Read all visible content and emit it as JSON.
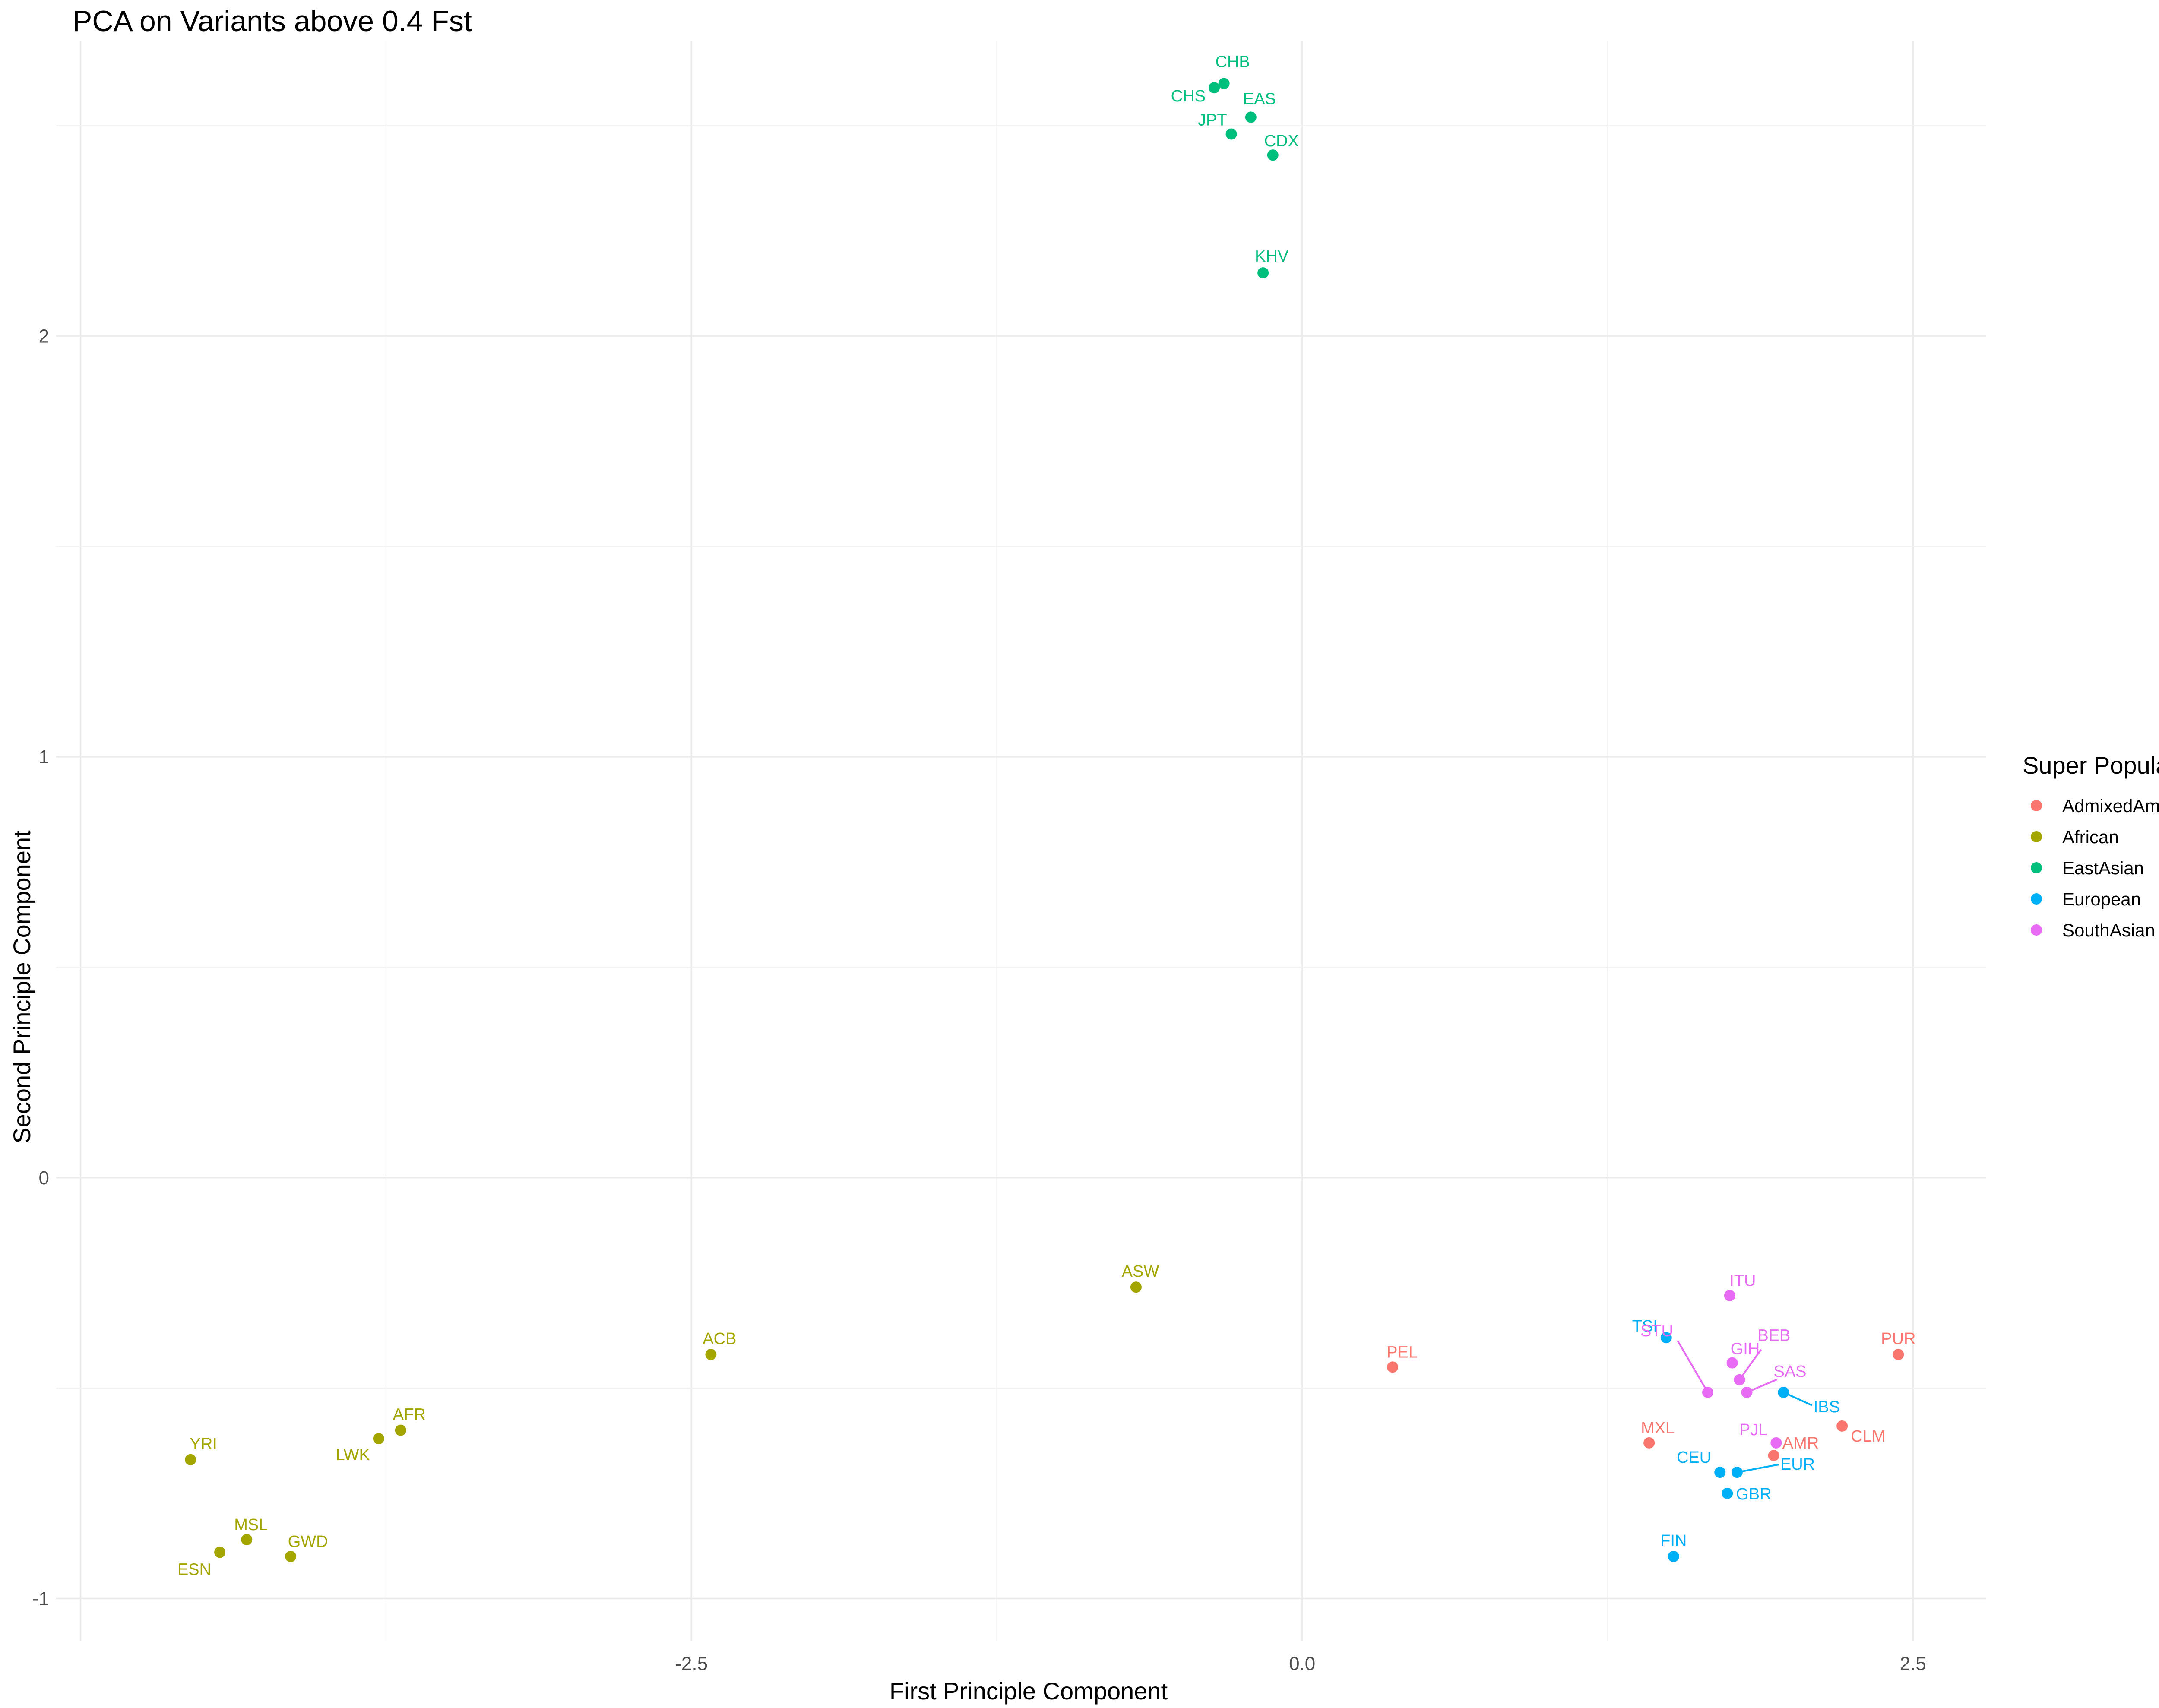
{
  "chart_data": {
    "type": "scatter",
    "title": "PCA on Variants above 0.4 Fst",
    "xlabel": "First Principle Component",
    "ylabel": "Second Principle Component",
    "xlim": [
      -5.1,
      2.8
    ],
    "ylim": [
      -1.1,
      2.7
    ],
    "xticks": [
      -2.5,
      0.0,
      2.5
    ],
    "xtick_labels": [
      "-2.5",
      "0.0",
      "2.5"
    ],
    "yticks": [
      -1,
      0,
      1,
      2
    ],
    "ytick_labels": [
      "-1",
      "0",
      "1",
      "2"
    ],
    "grid": true,
    "legend": {
      "title": "Super Population",
      "position": "right",
      "entries": [
        {
          "name": "AdmixedAmerican",
          "color": "#F8766D"
        },
        {
          "name": "African",
          "color": "#A3A500"
        },
        {
          "name": "EastAsian",
          "color": "#00BF7D"
        },
        {
          "name": "European",
          "color": "#00B0F6"
        },
        {
          "name": "SouthAsian",
          "color": "#E76BF3"
        }
      ]
    },
    "points": [
      {
        "label": "CHB",
        "group": "EastAsian",
        "x": -0.32,
        "y": 2.6
      },
      {
        "label": "CHS",
        "group": "EastAsian",
        "x": -0.36,
        "y": 2.59
      },
      {
        "label": "EAS",
        "group": "EastAsian",
        "x": -0.21,
        "y": 2.52
      },
      {
        "label": "JPT",
        "group": "EastAsian",
        "x": -0.29,
        "y": 2.48
      },
      {
        "label": "CDX",
        "group": "EastAsian",
        "x": -0.12,
        "y": 2.43
      },
      {
        "label": "KHV",
        "group": "EastAsian",
        "x": -0.16,
        "y": 2.15
      },
      {
        "label": "ASW",
        "group": "African",
        "x": -0.68,
        "y": -0.26
      },
      {
        "label": "ACB",
        "group": "African",
        "x": -2.42,
        "y": -0.42
      },
      {
        "label": "AFR",
        "group": "African",
        "x": -3.69,
        "y": -0.6
      },
      {
        "label": "LWK",
        "group": "African",
        "x": -3.78,
        "y": -0.62
      },
      {
        "label": "YRI",
        "group": "African",
        "x": -4.55,
        "y": -0.67
      },
      {
        "label": "MSL",
        "group": "African",
        "x": -4.32,
        "y": -0.86
      },
      {
        "label": "ESN",
        "group": "African",
        "x": -4.43,
        "y": -0.89
      },
      {
        "label": "GWD",
        "group": "African",
        "x": -4.14,
        "y": -0.9
      },
      {
        "label": "PEL",
        "group": "AdmixedAmerican",
        "x": 0.37,
        "y": -0.45
      },
      {
        "label": "PUR",
        "group": "AdmixedAmerican",
        "x": 2.44,
        "y": -0.42
      },
      {
        "label": "CLM",
        "group": "AdmixedAmerican",
        "x": 2.21,
        "y": -0.59
      },
      {
        "label": "MXL",
        "group": "AdmixedAmerican",
        "x": 1.42,
        "y": -0.63
      },
      {
        "label": "AMR",
        "group": "AdmixedAmerican",
        "x": 1.93,
        "y": -0.66
      },
      {
        "label": "TSI",
        "group": "European",
        "x": 1.49,
        "y": -0.38
      },
      {
        "label": "IBS",
        "group": "European",
        "x": 1.97,
        "y": -0.51
      },
      {
        "label": "CEU",
        "group": "European",
        "x": 1.71,
        "y": -0.7
      },
      {
        "label": "EUR",
        "group": "European",
        "x": 1.78,
        "y": -0.7
      },
      {
        "label": "GBR",
        "group": "European",
        "x": 1.74,
        "y": -0.75
      },
      {
        "label": "FIN",
        "group": "European",
        "x": 1.52,
        "y": -0.9
      },
      {
        "label": "ITU",
        "group": "SouthAsian",
        "x": 1.75,
        "y": -0.28
      },
      {
        "label": "BEB",
        "group": "SouthAsian",
        "x": 1.79,
        "y": -0.48
      },
      {
        "label": "GIH",
        "group": "SouthAsian",
        "x": 1.76,
        "y": -0.44
      },
      {
        "label": "STU",
        "group": "SouthAsian",
        "x": 1.66,
        "y": -0.51
      },
      {
        "label": "SAS",
        "group": "SouthAsian",
        "x": 1.82,
        "y": -0.51
      },
      {
        "label": "PJL",
        "group": "SouthAsian",
        "x": 1.94,
        "y": -0.63
      }
    ]
  }
}
